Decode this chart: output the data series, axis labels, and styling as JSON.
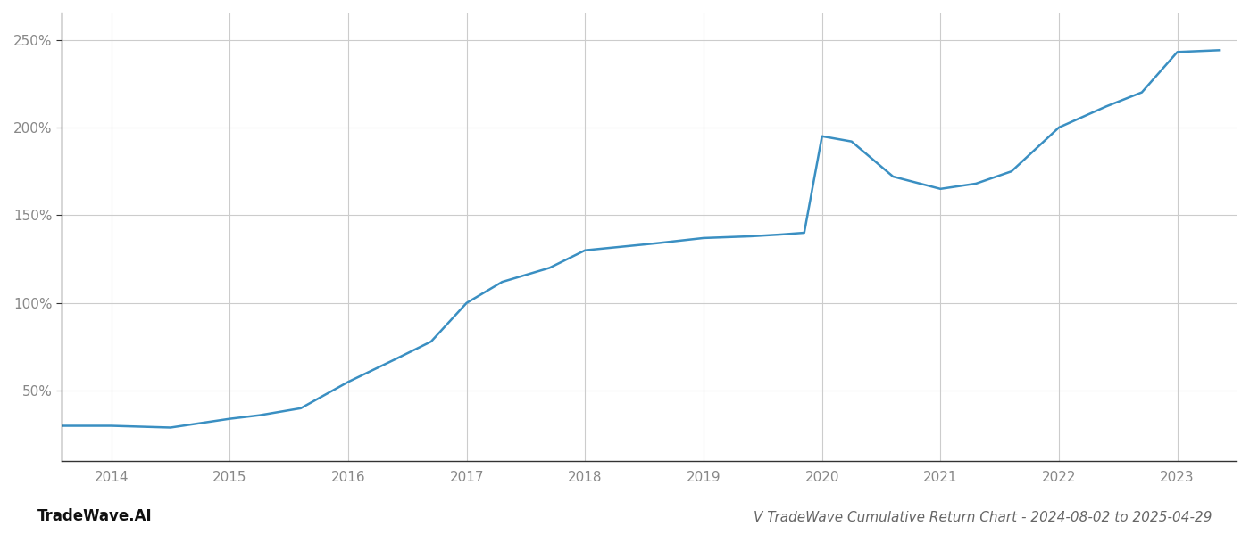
{
  "x_years": [
    2013.58,
    2014.0,
    2014.5,
    2015.0,
    2015.25,
    2015.6,
    2016.0,
    2016.4,
    2016.7,
    2017.0,
    2017.3,
    2017.7,
    2018.0,
    2018.3,
    2018.6,
    2019.0,
    2019.4,
    2019.65,
    2019.85,
    2020.0,
    2020.25,
    2020.6,
    2021.0,
    2021.3,
    2021.6,
    2022.0,
    2022.4,
    2022.7,
    2023.0,
    2023.35
  ],
  "y_values": [
    30,
    30,
    29,
    34,
    36,
    40,
    55,
    68,
    78,
    100,
    112,
    120,
    130,
    132,
    134,
    137,
    138,
    139,
    140,
    195,
    192,
    172,
    165,
    168,
    175,
    200,
    212,
    220,
    243,
    244
  ],
  "line_color": "#3a8fc2",
  "line_width": 1.8,
  "title": "V TradeWave Cumulative Return Chart - 2024-08-02 to 2025-04-29",
  "xlim": [
    2013.58,
    2023.5
  ],
  "ylim": [
    10,
    265
  ],
  "yticks": [
    50,
    100,
    150,
    200,
    250
  ],
  "xticks": [
    2014,
    2015,
    2016,
    2017,
    2018,
    2019,
    2020,
    2021,
    2022,
    2023
  ],
  "grid_color": "#cccccc",
  "background_color": "#ffffff",
  "watermark_text": "TradeWave.AI",
  "title_fontsize": 11,
  "tick_fontsize": 11,
  "watermark_fontsize": 12
}
